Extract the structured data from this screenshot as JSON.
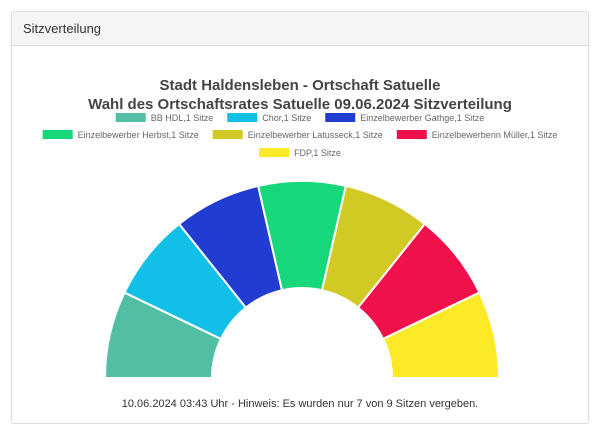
{
  "panel": {
    "title": "Sitzverteilung"
  },
  "footer": {
    "note": "10.06.2024 03:43 Uhr - Hinweis: Es wurden nur 7 von 9 Sitzen vergeben."
  },
  "chart_data": {
    "type": "parliament-semicircle",
    "title": "Stadt Haldensleben - Ortschaft Satuelle",
    "subtitle": "Wahl des Ortschaftsrates Satuelle 09.06.2024 Sitzverteilung",
    "legend_position": "top",
    "categories": [
      "BB HDL",
      "Chor",
      "Einzelbewerber Gathge",
      "Einzelbewerber Herbst",
      "Einzelbewerber Latusseck",
      "Einzelbewerberin Müller",
      "FDP"
    ],
    "values": [
      1,
      1,
      1,
      1,
      1,
      1,
      1
    ],
    "legend_labels": [
      "BB HDL,1 Sitze",
      "Chor,1 Sitze",
      "Einzelbewerber Gathge,1 Sitze",
      "Einzelbewerber Herbst,1 Sitze",
      "Einzelbewerber Latusseck,1 Sitze",
      "Einzelbewerberin Müller,1 Sitze",
      "FDP,1 Sitze"
    ],
    "colors": [
      "#52bfa5",
      "#12bfe6",
      "#213cd0",
      "#16d87a",
      "#d2ca24",
      "#f0104a",
      "#fcea29"
    ],
    "seats_assigned": 7,
    "seats_total": 9
  }
}
